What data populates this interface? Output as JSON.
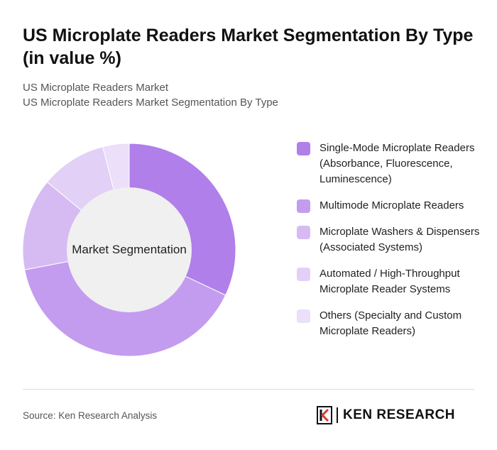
{
  "title": "US Microplate Readers Market Segmentation By Type (in value %)",
  "subtitle_lines": [
    "US Microplate Readers Market",
    "US Microplate Readers Market Segmentation By Type"
  ],
  "chart_data": {
    "type": "pie",
    "center_label": "Market Segmentation",
    "categories": [
      "Single-Mode Microplate Readers (Absorbance, Fluorescence, Luminescence)",
      "Multimode Microplate Readers",
      "Microplate Washers & Dispensers (Associated Systems)",
      "Automated / High-Throughput Microplate Reader Systems",
      "Others (Specialty and Custom Microplate Readers)"
    ],
    "values": [
      32,
      40,
      14,
      10,
      4
    ],
    "colors": [
      "#b07fea",
      "#c49cef",
      "#d6bbf3",
      "#e2d0f6",
      "#ebdff9"
    ],
    "legend_position": "right"
  },
  "source": "Source: Ken Research Analysis",
  "brand": {
    "name": "KEN RESEARCH",
    "logo_icon": "ken-research-logo-icon"
  }
}
